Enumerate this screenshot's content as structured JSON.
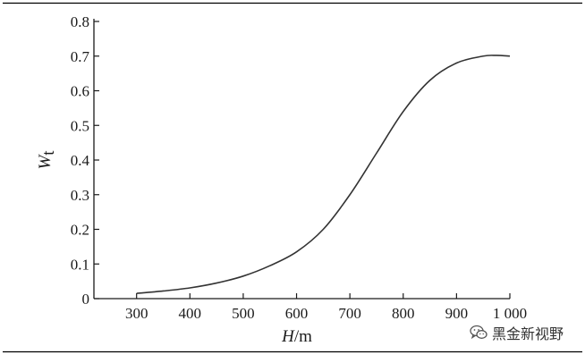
{
  "chart_data": {
    "type": "line",
    "title": "",
    "xlabel": "H",
    "xlabel_unit": "/m",
    "ylabel": "W",
    "ylabel_subscript": "t",
    "xlim": [
      220,
      1000
    ],
    "ylim": [
      0,
      0.8
    ],
    "x_ticks": [
      300,
      400,
      500,
      600,
      700,
      800,
      900,
      1000
    ],
    "x_tick_labels": [
      "300",
      "400",
      "500",
      "600",
      "700",
      "800",
      "900",
      "1 000"
    ],
    "y_ticks": [
      0,
      0.1,
      0.2,
      0.3,
      0.4,
      0.5,
      0.6,
      0.7,
      0.8
    ],
    "y_tick_labels": [
      "0",
      "0.1",
      "0.2",
      "0.3",
      "0.4",
      "0.5",
      "0.6",
      "0.7",
      "0.8"
    ],
    "grid": false,
    "legend": "none",
    "series": [
      {
        "x": [
          300,
          350,
          400,
          450,
          500,
          550,
          600,
          650,
          700,
          750,
          800,
          850,
          900,
          950,
          975,
          1000
        ],
        "y": [
          0.015,
          0.022,
          0.031,
          0.045,
          0.065,
          0.095,
          0.135,
          0.2,
          0.3,
          0.42,
          0.54,
          0.63,
          0.68,
          0.7,
          0.702,
          0.7
        ]
      }
    ]
  },
  "watermark": {
    "text": "黑金新视野",
    "icon": "wechat-icon"
  },
  "colors": {
    "line": "#333333",
    "axis": "#1a1a1a",
    "rule": "#000000"
  }
}
